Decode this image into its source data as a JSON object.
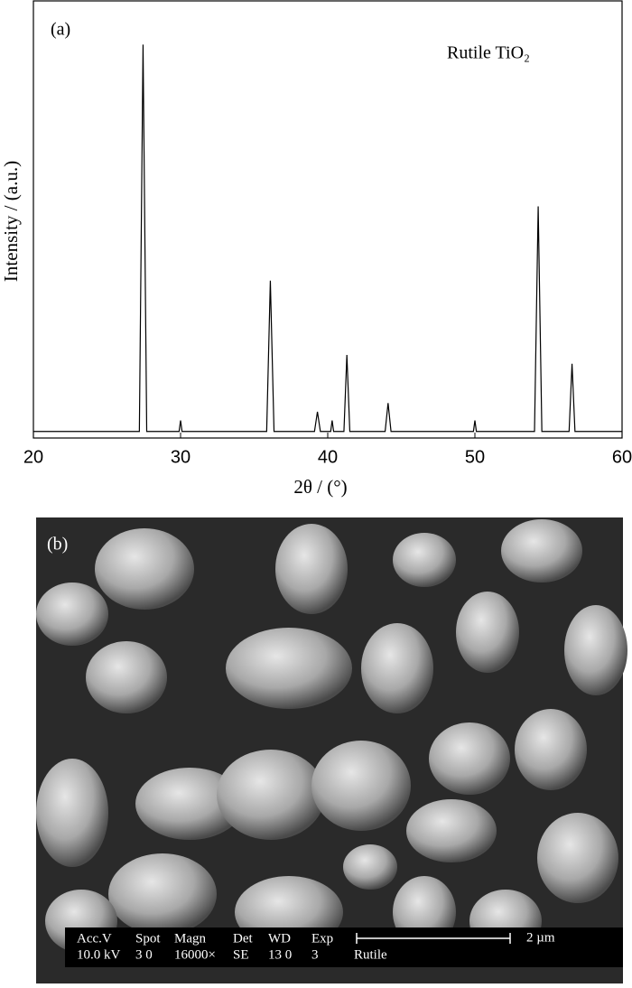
{
  "chart_data": {
    "type": "line",
    "panel_label": "(a)",
    "annotation": "Rutile TiO₂",
    "x_label": "2θ / (°)",
    "y_label": "Intensity / (a.u.)",
    "x": [
      20,
      27.2,
      27.45,
      27.7,
      29.9,
      30,
      30.1,
      35.85,
      36.1,
      36.35,
      39.1,
      39.3,
      39.5,
      40.2,
      40.3,
      40.4,
      41.1,
      41.3,
      41.5,
      43.9,
      44.1,
      44.3,
      49.9,
      50,
      50.1,
      54.05,
      54.3,
      54.55,
      56.4,
      56.6,
      56.8,
      60
    ],
    "values": [
      1.5,
      1.5,
      90,
      1.5,
      1.5,
      4,
      1.5,
      1.5,
      36,
      1.5,
      1.5,
      6,
      1.5,
      1.5,
      4,
      1.5,
      1.5,
      19,
      1.5,
      1.5,
      8,
      1.5,
      1.5,
      4,
      1.5,
      1.5,
      53,
      1.5,
      1.5,
      17,
      1.5,
      1.5
    ],
    "color": "#000000",
    "xlim": [
      20,
      60
    ],
    "xticks": [
      20,
      30,
      40,
      50,
      60
    ],
    "ylim": [
      0,
      100
    ]
  },
  "image": {
    "panel_label": "(b)",
    "info_headers": [
      "Acc.V",
      "Spot",
      "Magn",
      "Det",
      "WD",
      "Exp"
    ],
    "info_values": [
      "10.0 kV",
      "3 0",
      "16000×",
      "SE",
      "13 0",
      "3",
      "Rutile"
    ],
    "scale_bar": "2 µm"
  }
}
